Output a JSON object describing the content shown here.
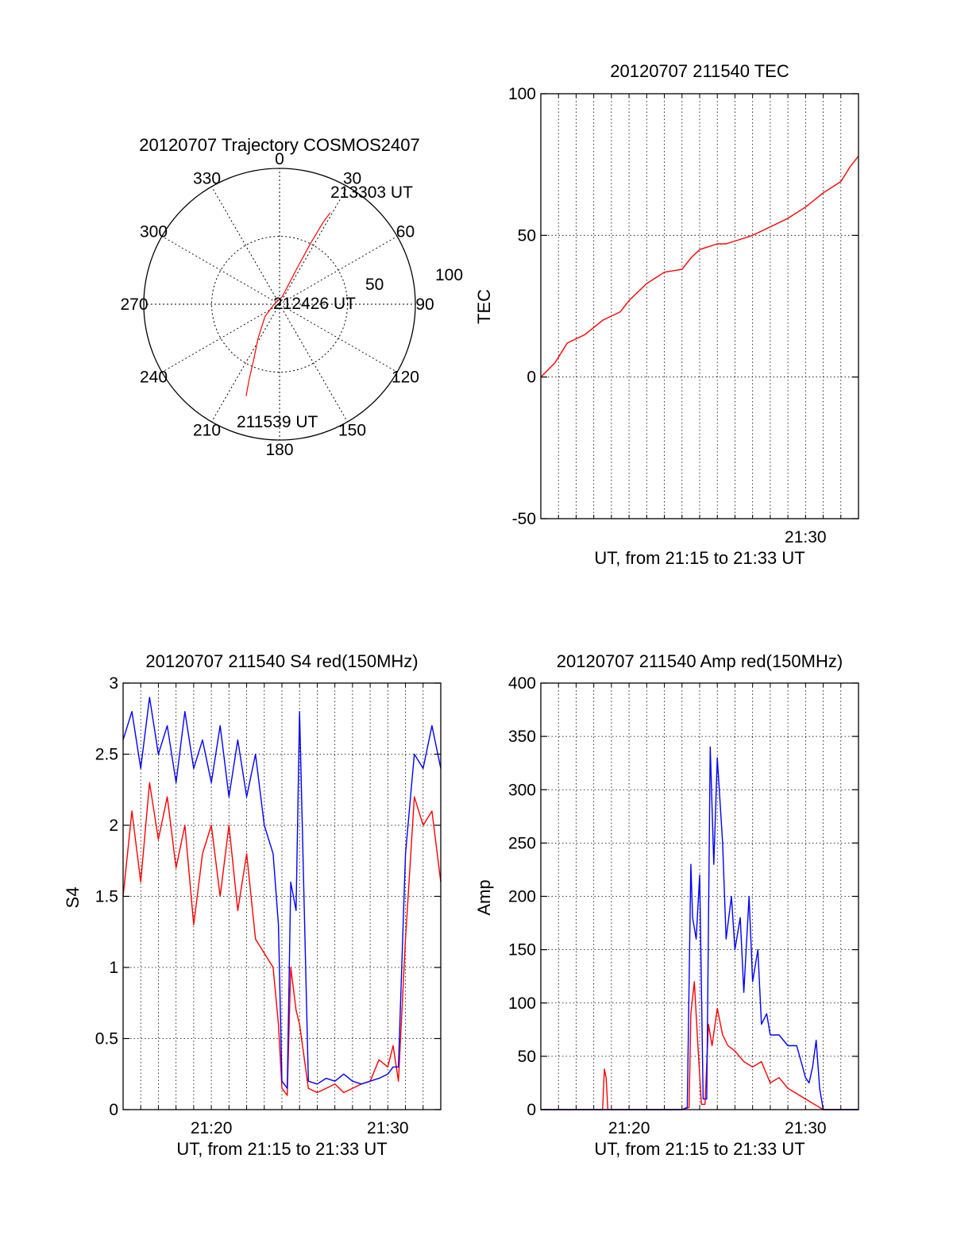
{
  "colors": {
    "red_series": "#ff0000",
    "blue_series": "#0000ff",
    "axes": "#000000",
    "grid": "#000000"
  },
  "chart_data": [
    {
      "type": "polar",
      "title": "20120707 Trajectory COSMOS2407",
      "angle_labels": [
        "0",
        "30",
        "60",
        "90",
        "120",
        "150",
        "180",
        "210",
        "240",
        "270",
        "300",
        "330"
      ],
      "radius_labels": [
        "50",
        "100"
      ],
      "radial_range": [
        0,
        100
      ],
      "grid": true,
      "annotations": [
        "213303 UT",
        "212426 UT",
        "211539 UT"
      ],
      "trajectory": {
        "color": "#ff0000",
        "points_azimuth_zenith": [
          [
            200,
            72
          ],
          [
            202,
            60
          ],
          [
            205,
            45
          ],
          [
            212,
            30
          ],
          [
            230,
            14
          ],
          [
            270,
            4
          ],
          [
            20,
            6
          ],
          [
            26,
            30
          ],
          [
            27,
            50
          ],
          [
            28,
            68
          ],
          [
            29,
            77
          ]
        ]
      }
    },
    {
      "type": "line",
      "title": "20120707 211540 TEC",
      "xlabel": "UT, from 21:15 to 21:33 UT",
      "ylabel": "TEC",
      "xlim": [
        "21:15",
        "21:33"
      ],
      "ylim": [
        -50,
        100
      ],
      "yticks": [
        "100",
        "50",
        "0",
        "-50"
      ],
      "xticks": [
        "21:30"
      ],
      "grid": true,
      "series": [
        {
          "color": "#ff0000",
          "x_min": [
            0.0,
            0.8,
            1.5,
            2.5,
            3.5,
            4.5,
            5.0,
            6.0,
            7.0,
            8.0,
            8.5,
            9.0,
            10.0,
            10.5,
            11.0,
            12.0,
            13.0,
            14.0,
            15.0,
            16.0,
            17.0,
            17.5,
            18.0
          ],
          "y": [
            0,
            5,
            12,
            15,
            20,
            23,
            27,
            33,
            37,
            38,
            42,
            45,
            47,
            47,
            48,
            50,
            53,
            56,
            60,
            65,
            69,
            74,
            78
          ]
        }
      ]
    },
    {
      "type": "line",
      "title": "20120707 211540 S4 red(150MHz)",
      "xlabel": "UT, from 21:15 to 21:33 UT",
      "ylabel": "S4",
      "xlim": [
        "21:15",
        "21:33"
      ],
      "ylim": [
        0,
        3
      ],
      "yticks": [
        "3",
        "2.5",
        "2",
        "1.5",
        "1",
        "0.5",
        "0"
      ],
      "xticks": [
        "21:20",
        "21:30"
      ],
      "grid": true,
      "series": [
        {
          "color": "#ff0000",
          "x_min": [
            0.0,
            0.5,
            1.0,
            1.5,
            2.0,
            2.5,
            3.0,
            3.5,
            4.0,
            4.5,
            5.0,
            5.5,
            6.0,
            6.5,
            7.0,
            7.5,
            8.0,
            8.5,
            8.8,
            9.0,
            9.3,
            9.5,
            9.8,
            10.0,
            10.5,
            11.0,
            11.5,
            12.0,
            12.5,
            13.0,
            13.5,
            14.0,
            14.5,
            15.0,
            15.3,
            15.6,
            16.0,
            16.5,
            17.0,
            17.5,
            18.0
          ],
          "y": [
            1.5,
            2.1,
            1.6,
            2.3,
            1.9,
            2.2,
            1.7,
            2.0,
            1.3,
            1.8,
            2.0,
            1.5,
            2.0,
            1.4,
            1.8,
            1.2,
            1.1,
            1.0,
            0.6,
            0.15,
            0.1,
            1.0,
            0.7,
            0.6,
            0.15,
            0.12,
            0.15,
            0.18,
            0.12,
            0.15,
            0.18,
            0.2,
            0.35,
            0.3,
            0.45,
            0.2,
            1.2,
            2.2,
            2.0,
            2.1,
            1.6
          ]
        },
        {
          "color": "#0000ff",
          "x_min": [
            0.0,
            0.5,
            1.0,
            1.5,
            2.0,
            2.5,
            3.0,
            3.5,
            4.0,
            4.5,
            5.0,
            5.5,
            6.0,
            6.5,
            7.0,
            7.5,
            8.0,
            8.5,
            8.8,
            9.0,
            9.3,
            9.5,
            9.8,
            10.0,
            10.5,
            11.0,
            11.5,
            12.0,
            12.5,
            13.0,
            13.5,
            14.0,
            14.5,
            15.0,
            15.3,
            15.6,
            16.0,
            16.5,
            17.0,
            17.5,
            18.0
          ],
          "y": [
            2.6,
            2.8,
            2.4,
            2.9,
            2.5,
            2.7,
            2.3,
            2.8,
            2.4,
            2.6,
            2.3,
            2.7,
            2.2,
            2.6,
            2.2,
            2.5,
            2.0,
            1.8,
            1.3,
            0.2,
            0.15,
            1.6,
            1.4,
            2.8,
            0.2,
            0.18,
            0.22,
            0.2,
            0.25,
            0.2,
            0.18,
            0.2,
            0.22,
            0.25,
            0.3,
            0.3,
            1.8,
            2.5,
            2.4,
            2.7,
            2.4
          ]
        }
      ]
    },
    {
      "type": "line",
      "title": "20120707 211540 Amp red(150MHz)",
      "xlabel": "UT, from 21:15 to 21:33 UT",
      "ylabel": "Amp",
      "xlim": [
        "21:15",
        "21:33"
      ],
      "ylim": [
        0,
        400
      ],
      "yticks": [
        "400",
        "350",
        "300",
        "250",
        "200",
        "150",
        "100",
        "50",
        "0"
      ],
      "xticks": [
        "21:20",
        "21:30"
      ],
      "grid": true,
      "series": [
        {
          "color": "#ff0000",
          "x_min": [
            0.0,
            3.0,
            3.5,
            3.6,
            3.7,
            3.8,
            4.0,
            8.0,
            8.4,
            8.5,
            8.7,
            8.9,
            9.1,
            9.3,
            9.5,
            9.7,
            10.0,
            10.3,
            10.6,
            11.0,
            11.5,
            12.0,
            12.5,
            13.0,
            13.5,
            14.0,
            14.5,
            15.0,
            15.5,
            16.0,
            18.0
          ],
          "y": [
            0,
            0,
            0,
            38,
            30,
            0,
            0,
            0,
            2,
            90,
            120,
            60,
            5,
            5,
            80,
            60,
            95,
            70,
            60,
            55,
            45,
            40,
            45,
            25,
            30,
            20,
            15,
            10,
            5,
            0,
            0
          ]
        },
        {
          "color": "#0000ff",
          "x_min": [
            0.0,
            8.0,
            8.3,
            8.5,
            8.6,
            8.8,
            9.0,
            9.2,
            9.4,
            9.6,
            9.8,
            10.0,
            10.3,
            10.5,
            10.8,
            11.0,
            11.3,
            11.5,
            11.8,
            12.0,
            12.3,
            12.5,
            12.8,
            13.0,
            13.5,
            14.0,
            14.5,
            15.0,
            15.2,
            15.4,
            15.6,
            15.8,
            16.0,
            18.0
          ],
          "y": [
            0,
            0,
            2,
            230,
            180,
            160,
            220,
            10,
            10,
            340,
            230,
            330,
            250,
            160,
            200,
            150,
            180,
            110,
            200,
            120,
            150,
            80,
            90,
            70,
            70,
            60,
            60,
            30,
            25,
            40,
            65,
            20,
            0,
            0
          ]
        }
      ]
    }
  ]
}
